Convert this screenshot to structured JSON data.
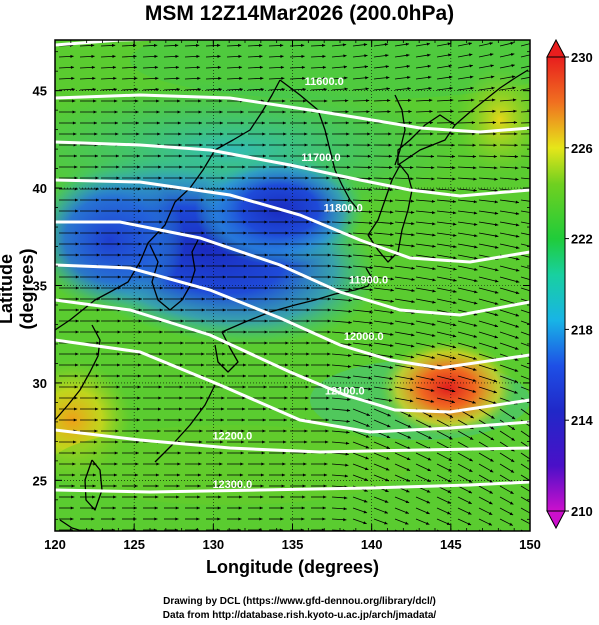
{
  "title": "MSM 12Z14Mar2026 (200.0hPa)",
  "xaxis": {
    "label": "Longitude (degrees)",
    "ticks": [
      "120",
      "125",
      "130",
      "135",
      "140",
      "145",
      "150"
    ],
    "range": [
      120,
      150
    ]
  },
  "yaxis": {
    "label": "Latitude  (degrees)",
    "ticks": [
      "25",
      "30",
      "35",
      "40",
      "45"
    ],
    "range": [
      22.4,
      47.6
    ]
  },
  "colorbar": {
    "ticks": [
      "230",
      "226",
      "222",
      "218",
      "214",
      "210"
    ],
    "range": [
      210,
      230
    ],
    "colors": [
      "#cc10cc",
      "#2020c8",
      "#1e50e6",
      "#18c8e0",
      "#20cc3a",
      "#70d020",
      "#e6e61a",
      "#f07020",
      "#e81e1e"
    ]
  },
  "contours": {
    "color": "#ffffff",
    "labels": [
      {
        "text": "11600.0",
        "lon": 137.0,
        "lat": 45.3
      },
      {
        "text": "11700.0",
        "lon": 136.8,
        "lat": 41.4
      },
      {
        "text": "11800.0",
        "lon": 138.2,
        "lat": 38.8
      },
      {
        "text": "11900.0",
        "lon": 139.8,
        "lat": 35.1
      },
      {
        "text": "12000.0",
        "lon": 139.5,
        "lat": 32.2
      },
      {
        "text": "12100.0",
        "lon": 138.3,
        "lat": 29.4
      },
      {
        "text": "12200.0",
        "lon": 131.2,
        "lat": 27.1
      },
      {
        "text": "12300.0",
        "lon": 131.2,
        "lat": 24.6
      }
    ]
  },
  "credits": {
    "line1": "Drawing by DCL (https://www.gfd-dennou.org/library/dcl/)",
    "line2": "Data from http://database.rish.kyoto-u.ac.jp/arch/jmadata/"
  }
}
